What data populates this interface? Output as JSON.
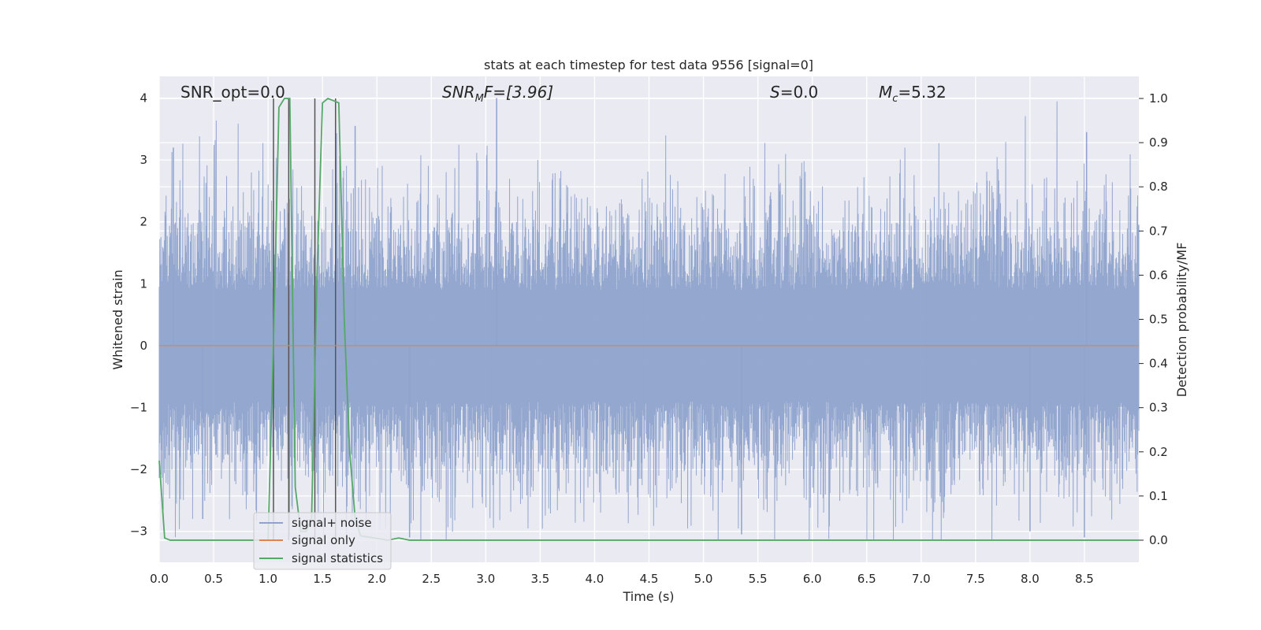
{
  "chart_data": {
    "type": "line",
    "title": "stats at each timestep for test data 9556 [signal=0]",
    "xlabel": "Time (s)",
    "ylabel_left": "Whitened strain",
    "ylabel_right": "Detection probability/MF",
    "xlim": [
      0.0,
      9.0
    ],
    "ylim_left": [
      -3.5,
      4.35
    ],
    "ylim_right": [
      -0.05,
      1.05
    ],
    "xticks": [
      "0.0",
      "0.5",
      "1.0",
      "1.5",
      "2.0",
      "2.5",
      "3.0",
      "3.5",
      "4.0",
      "4.5",
      "5.0",
      "5.5",
      "6.0",
      "6.5",
      "7.0",
      "7.5",
      "8.0",
      "8.5"
    ],
    "yticks_left": [
      "4",
      "3",
      "2",
      "1",
      "0",
      "−1",
      "−2",
      "−3"
    ],
    "yticks_right": [
      "1.0",
      "0.9",
      "0.8",
      "0.7",
      "0.6",
      "0.5",
      "0.4",
      "0.3",
      "0.2",
      "0.1",
      "0.0"
    ],
    "grid": true,
    "legend_position": "lower-left",
    "annotations": {
      "snr_opt": "SNR_opt=0.0",
      "snr_mf_main": "SNR",
      "snr_mf_sub": "M",
      "snr_mf_rest": "F=[3.96]",
      "s_main": "S",
      "s_rest": "=0.0",
      "mc_main": "M",
      "mc_sub": "c",
      "mc_rest": "=5.32"
    },
    "series": [
      {
        "name": "signal+ noise",
        "axis": "left",
        "color": "#8fa3cc",
        "description_values": "whitened noise, approximately Gaussian, peaks between -3.2 and 4.0"
      },
      {
        "name": "signal only",
        "axis": "left",
        "color": "#dd8452",
        "x": [
          0.0,
          9.0
        ],
        "y": [
          0.0,
          0.0
        ]
      },
      {
        "name": "signal statistics",
        "axis": "right",
        "color": "#55a868",
        "x": [
          0.0,
          0.05,
          0.1,
          1.0,
          1.05,
          1.1,
          1.15,
          1.2,
          1.25,
          1.3,
          1.35,
          1.4,
          1.45,
          1.5,
          1.55,
          1.6,
          1.65,
          1.7,
          1.75,
          1.8,
          1.85,
          2.1,
          2.2,
          2.3,
          9.0
        ],
        "y": [
          0.18,
          0.005,
          0.0,
          0.0,
          0.45,
          0.98,
          1.0,
          1.0,
          0.12,
          0.02,
          0.02,
          0.05,
          0.6,
          0.99,
          1.0,
          0.995,
          0.99,
          0.5,
          0.2,
          0.05,
          0.01,
          0.0,
          0.005,
          0.0,
          0.0
        ]
      }
    ],
    "vertical_lines": [
      1.05,
      1.19,
      1.43,
      1.62
    ],
    "vertical_lines_color": "#555555"
  }
}
